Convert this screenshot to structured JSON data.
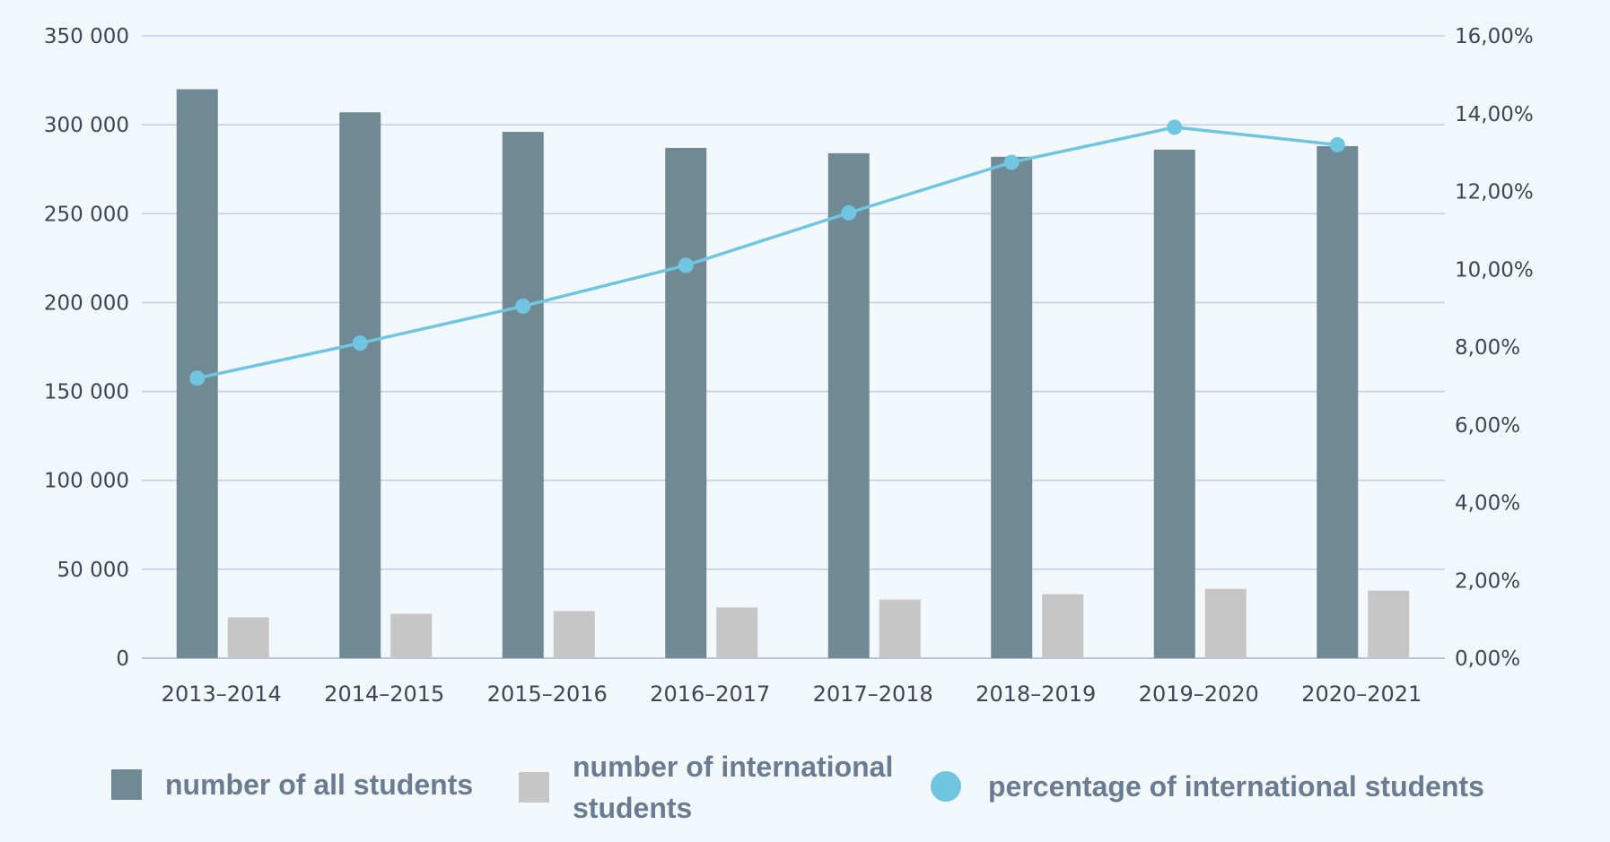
{
  "colors": {
    "all_students": "#6f8a95",
    "international_students": "#c6c6c6",
    "percentage": "#70c6e0",
    "gridline": "#c5cfe8"
  },
  "legend": {
    "all_students": "number of all students",
    "international_students": "number of international students",
    "percentage": "percentage of international students"
  },
  "chart_data": {
    "type": "bar",
    "title": "",
    "xlabel": "",
    "ylabel": "",
    "categories": [
      "2013–2014",
      "2014–2015",
      "2015–2016",
      "2016–2017",
      "2017–2018",
      "2018–2019",
      "2019–2020",
      "2020–2021"
    ],
    "series": [
      {
        "name": "number of all students",
        "type": "bar",
        "axis": "left",
        "values": [
          320000,
          307000,
          296000,
          287000,
          284000,
          282000,
          286000,
          288000
        ]
      },
      {
        "name": "number of international students",
        "type": "bar",
        "axis": "left",
        "values": [
          23000,
          25000,
          26500,
          28500,
          33000,
          36000,
          39000,
          38000
        ]
      },
      {
        "name": "percentage of international students",
        "type": "line",
        "axis": "right",
        "values": [
          7.2,
          8.1,
          9.05,
          10.1,
          11.45,
          12.75,
          13.65,
          13.2
        ]
      }
    ],
    "y_left": {
      "range": [
        0,
        350000
      ],
      "ticks": [
        0,
        50000,
        100000,
        150000,
        200000,
        250000,
        300000,
        350000
      ],
      "tick_labels": [
        "0",
        "50 000",
        "100 000",
        "150 000",
        "200 000",
        "250 000",
        "300 000",
        "350 000"
      ]
    },
    "y_right": {
      "range": [
        0,
        16
      ],
      "ticks": [
        0,
        2,
        4,
        6,
        8,
        10,
        12,
        14,
        16
      ],
      "tick_labels": [
        "0,00%",
        "2,00%",
        "4,00%",
        "6,00%",
        "8,00%",
        "10,00%",
        "12,00%",
        "14,00%",
        "16,00%"
      ]
    },
    "grid": true,
    "legend_position": "bottom"
  }
}
